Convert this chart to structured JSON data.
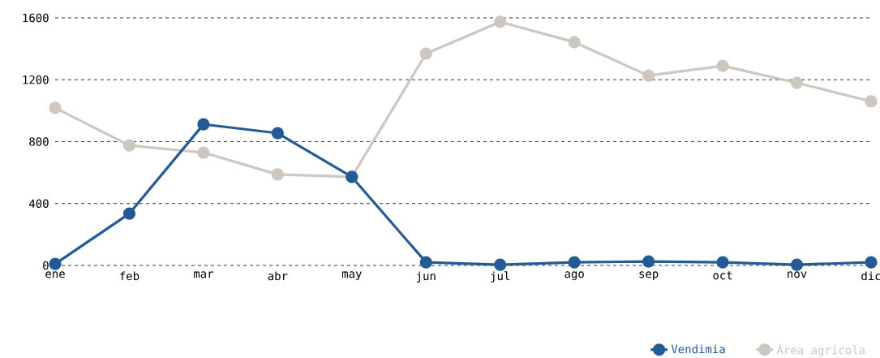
{
  "chart_data": {
    "type": "line",
    "categories": [
      "ene",
      "feb",
      "mar",
      "abr",
      "may",
      "jun",
      "jul",
      "ago",
      "sep",
      "oct",
      "nov",
      "dic"
    ],
    "series": [
      {
        "name": "Vendimia",
        "color": "#235b96",
        "values": [
          10,
          335,
          912,
          855,
          572,
          20,
          5,
          20,
          26,
          20,
          5,
          20
        ]
      },
      {
        "name": "Área agrícola",
        "color": "#cdc7bf",
        "values": [
          1018,
          776,
          729,
          588,
          572,
          1369,
          1574,
          1443,
          1227,
          1290,
          1180,
          1060
        ]
      }
    ],
    "ylim": [
      0,
      1600
    ],
    "yticks": [
      0,
      400,
      800,
      1200,
      1600
    ],
    "grid": "y",
    "legend": "bottom right",
    "marker": "circle",
    "line_style": "solid"
  }
}
